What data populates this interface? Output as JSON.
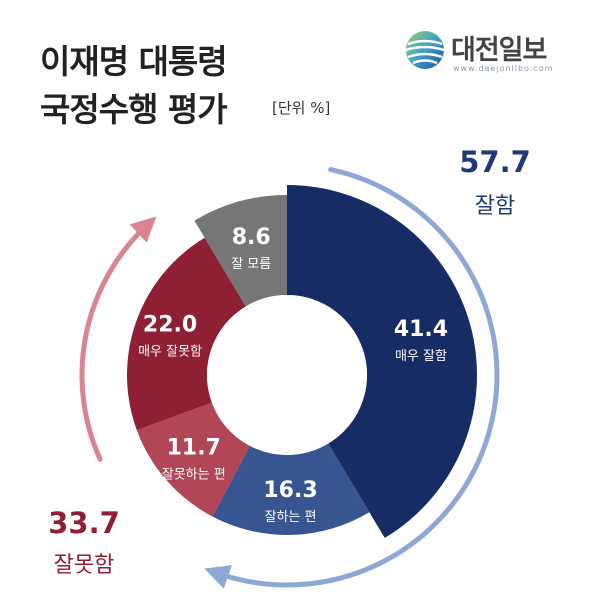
{
  "title_lines": [
    "이재명 대통령",
    "국정수행 평가"
  ],
  "unit": "[단위 %]",
  "logo": {
    "name": "대전일보",
    "url": "www.daejonilbo.com"
  },
  "colors": {
    "very_good": "#172c64",
    "good": "#375591",
    "somewhat_bad": "#b04656",
    "very_bad": "#8f1f33",
    "unknown": "#767676",
    "positive_text": "#1f3a7a",
    "negative_text": "#8f1f33",
    "positive_arrow": "#8ea8d6",
    "negative_arrow": "#d9848f"
  },
  "chart_data": {
    "type": "pie",
    "variant": "donut",
    "slices": [
      {
        "label": "매우 잘함",
        "value": 41.4,
        "color": "#172c64",
        "group": "positive"
      },
      {
        "label": "잘하는 편",
        "value": 16.3,
        "color": "#375591",
        "group": "positive"
      },
      {
        "label": "잘못하는 편",
        "value": 11.7,
        "color": "#b04656",
        "group": "negative"
      },
      {
        "label": "매우 잘못함",
        "value": 22.0,
        "color": "#8f1f33",
        "group": "negative"
      },
      {
        "label": "잘 모름",
        "value": 8.6,
        "color": "#767676",
        "group": "unknown"
      }
    ],
    "totals": {
      "positive": {
        "value": "57.7",
        "label": "잘함"
      },
      "negative": {
        "value": "33.7",
        "label": "잘못함"
      }
    }
  }
}
